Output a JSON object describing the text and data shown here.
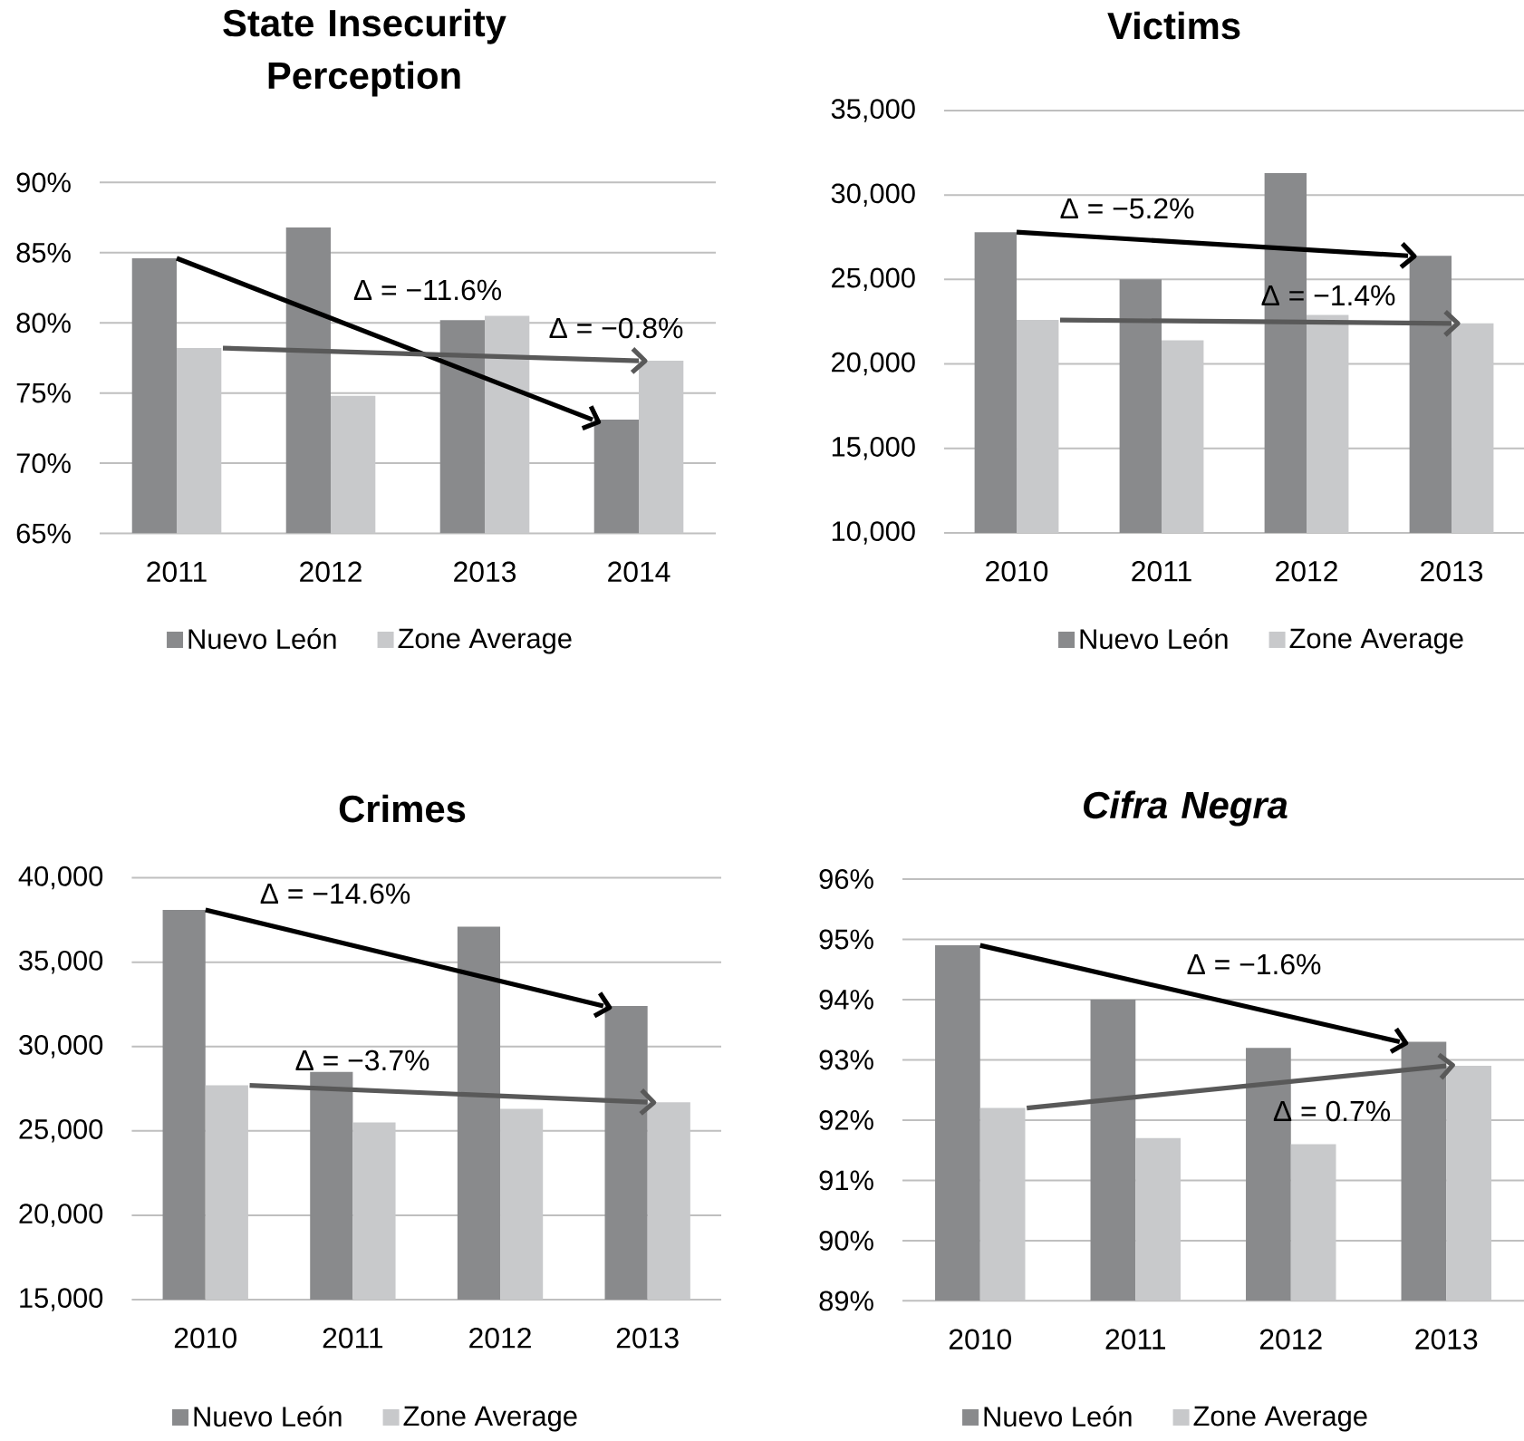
{
  "chart_data": [
    {
      "type": "bar",
      "title": "State Insecurity Perception",
      "x": [
        2011,
        2012,
        2013,
        2014
      ],
      "series": [
        {
          "name": "Nuevo León",
          "color": "#898a8c",
          "values": [
            84.6,
            86.8,
            80.2,
            73.1
          ]
        },
        {
          "name": "Zone Average",
          "color": "#c8c9cb",
          "values": [
            78.2,
            74.8,
            80.5,
            77.3
          ]
        },
        {
          "type": "line",
          "color": "#000000",
          "x": [
            2011,
            2013.7
          ],
          "values": [
            84.6,
            73.1
          ]
        },
        {
          "type": "line",
          "color": "#595959",
          "x": [
            2011.3,
            2014
          ],
          "values": [
            78.2,
            77.3
          ]
        }
      ],
      "xlim": [
        2010.5,
        2014.5
      ],
      "xticks": [
        2011,
        2012,
        2013,
        2014
      ],
      "ylim": [
        65,
        90
      ],
      "yticks": [
        {
          "value": 65,
          "label": "65%"
        },
        {
          "value": 70,
          "label": "70%"
        },
        {
          "value": 75,
          "label": "75%"
        },
        {
          "value": 80,
          "label": "80%"
        },
        {
          "value": 85,
          "label": "85%"
        },
        {
          "value": 90,
          "label": "90%"
        }
      ],
      "grid": "y",
      "legend": "bottom",
      "annotations": [
        "Δ = −11.6%",
        "Δ = −0.8%"
      ]
    },
    {
      "type": "bar",
      "title": "Victims",
      "x": [
        2010,
        2011,
        2012,
        2013
      ],
      "series": [
        {
          "name": "Nuevo León",
          "color": "#898a8c",
          "values": [
            27800,
            25000,
            31300,
            26400
          ]
        },
        {
          "name": "Zone Average",
          "color": "#c8c9cb",
          "values": [
            22600,
            21400,
            22900,
            22400
          ]
        },
        {
          "type": "line",
          "color": "#000000",
          "x": [
            2010,
            2012.7
          ],
          "values": [
            27800,
            26400
          ]
        },
        {
          "type": "line",
          "color": "#595959",
          "x": [
            2010.3,
            2013
          ],
          "values": [
            22600,
            22400
          ]
        }
      ],
      "xlim": [
        2009.5,
        2013.5
      ],
      "xticks": [
        2010,
        2011,
        2012,
        2013
      ],
      "ylim": [
        10000,
        35000
      ],
      "yticks": [
        {
          "value": 10000,
          "label": "10,000"
        },
        {
          "value": 15000,
          "label": "15,000"
        },
        {
          "value": 20000,
          "label": "20,000"
        },
        {
          "value": 25000,
          "label": "25,000"
        },
        {
          "value": 30000,
          "label": "30,000"
        },
        {
          "value": 35000,
          "label": "35,000"
        }
      ],
      "grid": "y",
      "legend": "bottom",
      "annotations": [
        "Δ = −5.2%",
        "Δ = −1.4%"
      ]
    },
    {
      "type": "bar",
      "title": "Crimes",
      "x": [
        2010,
        2011,
        2012,
        2013
      ],
      "series": [
        {
          "name": "Nuevo León",
          "color": "#898a8c",
          "values": [
            38100,
            28500,
            37100,
            32400
          ]
        },
        {
          "name": "Zone Average",
          "color": "#c8c9cb",
          "values": [
            27700,
            25500,
            26300,
            26700
          ]
        },
        {
          "type": "line",
          "color": "#000000",
          "x": [
            2010,
            2012.7
          ],
          "values": [
            38100,
            32400
          ]
        },
        {
          "type": "line",
          "color": "#595959",
          "x": [
            2010.3,
            2013
          ],
          "values": [
            27700,
            26700
          ]
        }
      ],
      "xlim": [
        2009.5,
        2013.5
      ],
      "xticks": [
        2010,
        2011,
        2012,
        2013
      ],
      "ylim": [
        15000,
        40000
      ],
      "yticks": [
        {
          "value": 15000,
          "label": "15,000"
        },
        {
          "value": 20000,
          "label": "20,000"
        },
        {
          "value": 25000,
          "label": "25,000"
        },
        {
          "value": 30000,
          "label": "30,000"
        },
        {
          "value": 35000,
          "label": "35,000"
        },
        {
          "value": 40000,
          "label": "40,000"
        }
      ],
      "grid": "y",
      "legend": "bottom",
      "annotations": [
        "Δ = −14.6%",
        "Δ = −3.7%"
      ]
    },
    {
      "type": "bar",
      "title": "*Cifra Negra*",
      "x": [
        2010,
        2011,
        2012,
        2013
      ],
      "series": [
        {
          "name": "Nuevo León",
          "color": "#898a8c",
          "values": [
            94.9,
            94.0,
            93.2,
            93.3
          ]
        },
        {
          "name": "Zone Average",
          "color": "#c8c9cb",
          "values": [
            92.2,
            91.7,
            91.6,
            92.9
          ]
        },
        {
          "type": "line",
          "color": "#000000",
          "x": [
            2010,
            2012.7
          ],
          "values": [
            94.9,
            93.3
          ]
        },
        {
          "type": "line",
          "color": "#595959",
          "x": [
            2010.3,
            2013
          ],
          "values": [
            92.2,
            92.9
          ]
        }
      ],
      "xlim": [
        2009.5,
        2013.5
      ],
      "xticks": [
        2010,
        2011,
        2012,
        2013
      ],
      "ylim": [
        89,
        96
      ],
      "yticks": [
        {
          "value": 89,
          "label": "89%"
        },
        {
          "value": 90,
          "label": "90%"
        },
        {
          "value": 91,
          "label": "91%"
        },
        {
          "value": 92,
          "label": "92%"
        },
        {
          "value": 93,
          "label": "93%"
        },
        {
          "value": 94,
          "label": "94%"
        },
        {
          "value": 95,
          "label": "95%"
        },
        {
          "value": 96,
          "label": "96%"
        }
      ],
      "grid": "y",
      "legend": "bottom",
      "annotations": [
        "Δ = −1.6%",
        "Δ = 0.7%"
      ]
    }
  ]
}
